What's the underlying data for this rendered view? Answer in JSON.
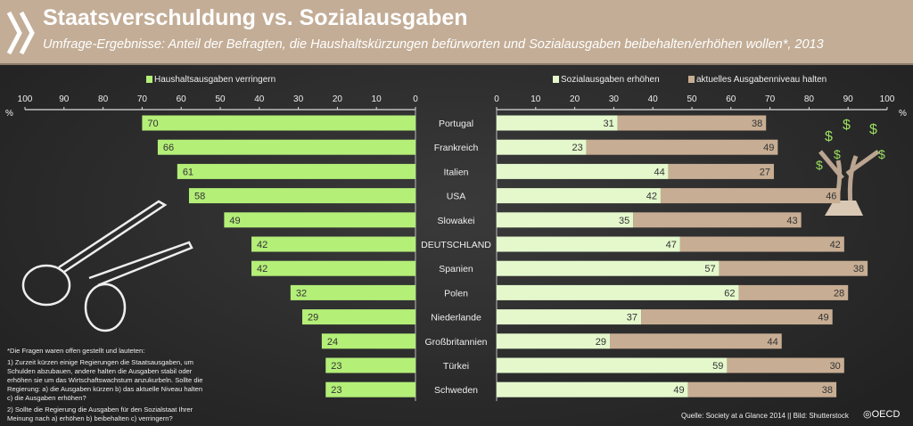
{
  "header": {
    "title": "Staatsverschuldung vs. Sozialausgaben",
    "subtitle": "Umfrage-Ergebnisse: Anteil der Befragten, die Haushaltskürzungen befürworten und Sozialausgaben beibehalten/erhöhen wollen*, 2013"
  },
  "chart_data": {
    "type": "bar",
    "title": "Staatsverschuldung vs. Sozialausgaben",
    "categories": [
      "Portugal",
      "Frankreich",
      "Italien",
      "USA",
      "Slowakei",
      "DEUTSCHLAND",
      "Spanien",
      "Polen",
      "Niederlande",
      "Großbritannien",
      "Türkei",
      "Schweden"
    ],
    "series": [
      {
        "name": "Haushaltsausgaben verringern",
        "side": "left",
        "color": "#b4ef78",
        "values": [
          70,
          66,
          61,
          58,
          49,
          42,
          42,
          32,
          29,
          24,
          23,
          23
        ]
      },
      {
        "name": "Sozialausgaben erhöhen",
        "side": "right",
        "color": "#e4f8cc",
        "values": [
          31,
          23,
          44,
          42,
          35,
          47,
          57,
          62,
          37,
          29,
          59,
          49
        ]
      },
      {
        "name": "aktuelles Ausgabenniveau halten",
        "side": "right",
        "color": "#c7ad93",
        "values": [
          38,
          49,
          27,
          46,
          43,
          42,
          38,
          28,
          49,
          44,
          30,
          38
        ]
      }
    ],
    "xlim_left": [
      100,
      0
    ],
    "xlim_right": [
      0,
      100
    ],
    "ticks_left": [
      "100",
      "90",
      "80",
      "70",
      "60",
      "50",
      "40",
      "30",
      "20",
      "10",
      "0"
    ],
    "ticks_right": [
      "0",
      "10",
      "20",
      "30",
      "40",
      "50",
      "60",
      "70",
      "80",
      "90",
      "100"
    ],
    "unit": "%",
    "legend": "top"
  },
  "footnote": {
    "intro": "*Die Fragen waren offen gestellt und lauteten:",
    "q1": "1) Zurzeit kürzen einige Regierungen die Staatsausgaben, um Schulden abzubauen, andere halten die Ausgaben stabil oder erhöhen sie um das Wirtschaftswachstum anzukurbeln. Sollte die Regierung: a) die Ausgaben kürzen b) das aktuelle Niveau halten c) die Ausgaben erhöhen?",
    "q2": "2) Sollte die Regierung die Ausgaben für den Sozialstaat Ihrer Meinung nach a) erhöhen b) beibehalten c) verringern?"
  },
  "source": "Quelle: Society at a Glance 2014 || Bild: Shutterstock",
  "logo": "OECD"
}
